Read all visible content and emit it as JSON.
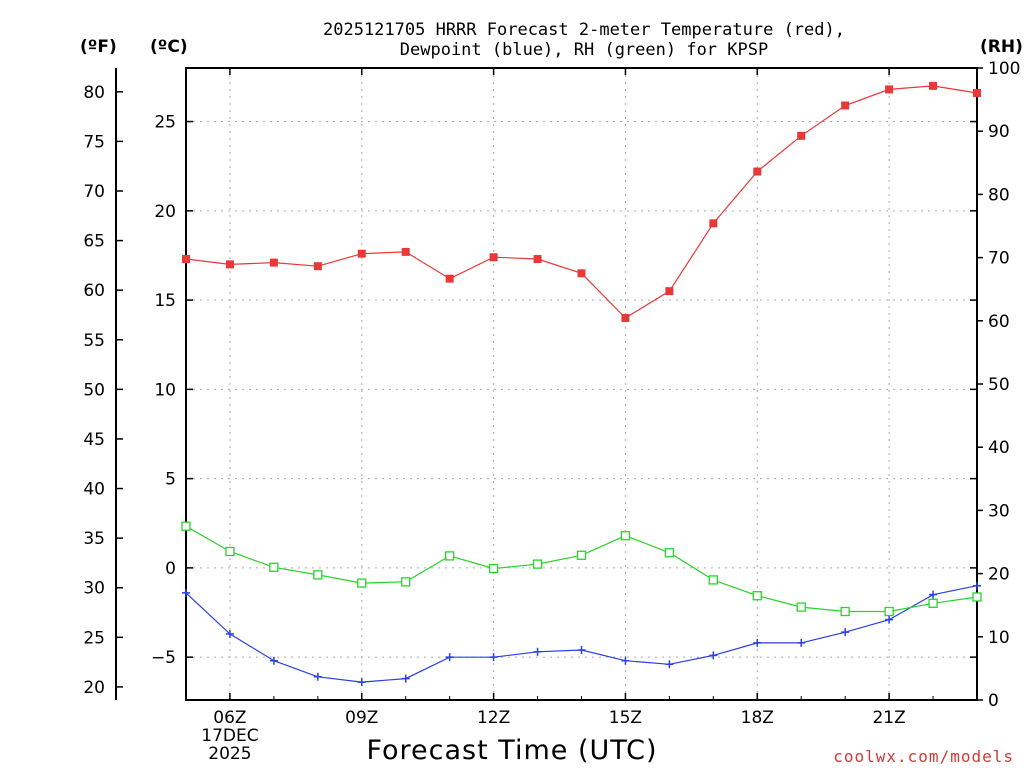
{
  "chart_data": {
    "type": "line",
    "title": "2025121705 HRRR Forecast 2-meter Temperature (red),",
    "subtitle": "Dewpoint (blue), RH (green) for KPSP",
    "xlabel": "Forecast Time (UTC)",
    "credit": "coolwx.com/models",
    "unit_labels": {
      "fahrenheit": "(ºF)",
      "celsius": "(ºC)",
      "rh": "(RH)"
    },
    "x_hours": [
      5,
      6,
      7,
      8,
      9,
      10,
      11,
      12,
      13,
      14,
      15,
      16,
      17,
      18,
      19,
      20,
      21,
      22,
      23
    ],
    "x_ticks": [
      {
        "hour": 6,
        "label": "06Z",
        "date": "17DEC",
        "year": "2025"
      },
      {
        "hour": 9,
        "label": "09Z"
      },
      {
        "hour": 12,
        "label": "12Z"
      },
      {
        "hour": 15,
        "label": "15Z"
      },
      {
        "hour": 18,
        "label": "18Z"
      },
      {
        "hour": 21,
        "label": "21Z"
      }
    ],
    "x_range": [
      5,
      23
    ],
    "celsius_range": [
      -7.4,
      28.0
    ],
    "celsius_ticks": [
      25,
      20,
      15,
      10,
      5,
      0,
      -5
    ],
    "celsius_tick_labels": [
      "25",
      "20",
      "15",
      "10",
      "5",
      "0",
      "−5"
    ],
    "fahrenheit_ticks": [
      80,
      75,
      70,
      65,
      60,
      55,
      50,
      45,
      40,
      35,
      30,
      25,
      20
    ],
    "rh_range": [
      0,
      100
    ],
    "rh_ticks": [
      100,
      90,
      80,
      70,
      60,
      50,
      40,
      30,
      20,
      10,
      0
    ],
    "series": [
      {
        "name": "2-meter Temperature",
        "axis": "celsius",
        "color": "#e83838",
        "marker": "filled-square",
        "values": [
          17.3,
          17.0,
          17.1,
          16.9,
          17.6,
          17.7,
          16.2,
          17.4,
          17.3,
          16.5,
          14.0,
          15.5,
          19.3,
          22.2,
          24.2,
          25.9,
          26.8,
          27.0,
          26.6
        ]
      },
      {
        "name": "Dewpoint",
        "axis": "celsius",
        "color": "#2a3fe6",
        "marker": "plus",
        "values": [
          -1.4,
          -3.7,
          -5.2,
          -6.1,
          -6.4,
          -6.2,
          -5.0,
          -5.0,
          -4.7,
          -4.6,
          -5.2,
          -5.4,
          -4.9,
          -4.2,
          -4.2,
          -3.6,
          -2.9,
          -1.5,
          -1.0
        ]
      },
      {
        "name": "RH",
        "axis": "rh",
        "color": "#2bd22b",
        "marker": "open-square",
        "values": [
          27.5,
          23.5,
          21.0,
          19.8,
          18.5,
          18.7,
          22.8,
          20.8,
          21.5,
          22.9,
          26.0,
          23.3,
          19.0,
          16.5,
          14.7,
          14.0,
          14.0,
          15.3,
          16.3
        ]
      }
    ]
  }
}
